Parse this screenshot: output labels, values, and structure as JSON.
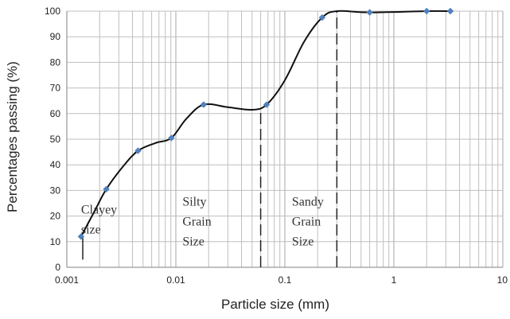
{
  "chart_data": {
    "type": "scatter",
    "xlabel": "Particle size (mm)",
    "ylabel": "Percentages passing (%)",
    "x_scale": "log",
    "xlim": [
      0.001,
      10
    ],
    "ylim": [
      0,
      100
    ],
    "grid": true,
    "x_ticks": [
      {
        "value": 0.001,
        "label": "0.001"
      },
      {
        "value": 0.01,
        "label": "0.01"
      },
      {
        "value": 0.1,
        "label": "0.1"
      },
      {
        "value": 1,
        "label": "1"
      },
      {
        "value": 10,
        "label": "10"
      }
    ],
    "y_ticks": [
      0,
      10,
      20,
      30,
      40,
      50,
      60,
      70,
      80,
      90,
      100
    ],
    "points": [
      {
        "x": 0.00135,
        "y": 12
      },
      {
        "x": 0.0023,
        "y": 30.5
      },
      {
        "x": 0.0045,
        "y": 45.5
      },
      {
        "x": 0.0091,
        "y": 50.5
      },
      {
        "x": 0.018,
        "y": 63.5
      },
      {
        "x": 0.068,
        "y": 63.5
      },
      {
        "x": 0.22,
        "y": 97.5
      },
      {
        "x": 0.6,
        "y": 99.5
      },
      {
        "x": 2.0,
        "y": 100
      },
      {
        "x": 3.3,
        "y": 100
      }
    ],
    "curve": [
      {
        "x": 0.00135,
        "y": 12
      },
      {
        "x": 0.0018,
        "y": 22
      },
      {
        "x": 0.0023,
        "y": 30.5
      },
      {
        "x": 0.0033,
        "y": 39.5
      },
      {
        "x": 0.0045,
        "y": 45.5
      },
      {
        "x": 0.0065,
        "y": 48.5
      },
      {
        "x": 0.0091,
        "y": 50.5
      },
      {
        "x": 0.0125,
        "y": 58
      },
      {
        "x": 0.018,
        "y": 63.5
      },
      {
        "x": 0.03,
        "y": 62.5
      },
      {
        "x": 0.05,
        "y": 61.5
      },
      {
        "x": 0.068,
        "y": 63.5
      },
      {
        "x": 0.1,
        "y": 73
      },
      {
        "x": 0.15,
        "y": 88
      },
      {
        "x": 0.22,
        "y": 97.5
      },
      {
        "x": 0.3,
        "y": 100
      },
      {
        "x": 0.6,
        "y": 99.5
      },
      {
        "x": 2.0,
        "y": 100
      },
      {
        "x": 3.3,
        "y": 100
      }
    ],
    "boundaries": [
      {
        "x": 0.0014,
        "y_from": 3,
        "y_to": 12,
        "style": "solid"
      },
      {
        "x": 0.06,
        "y_from": 0,
        "y_to": 62,
        "style": "dashed"
      },
      {
        "x": 0.3,
        "y_from": 0,
        "y_to": 100,
        "style": "dashed"
      }
    ],
    "annotations": [
      {
        "id": "clayey",
        "lines": [
          "Clayey",
          "size"
        ],
        "x": 0.00135,
        "y": 21
      },
      {
        "id": "silty",
        "lines": [
          "Silty",
          "Grain",
          "Size"
        ],
        "x": 0.0115,
        "y": 24
      },
      {
        "id": "sandy",
        "lines": [
          "Sandy",
          "Grain",
          "Size"
        ],
        "x": 0.116,
        "y": 24
      }
    ],
    "colors": {
      "curve": "#111111",
      "marker": "#4f81bd",
      "grid": "#bfbfbf"
    }
  }
}
